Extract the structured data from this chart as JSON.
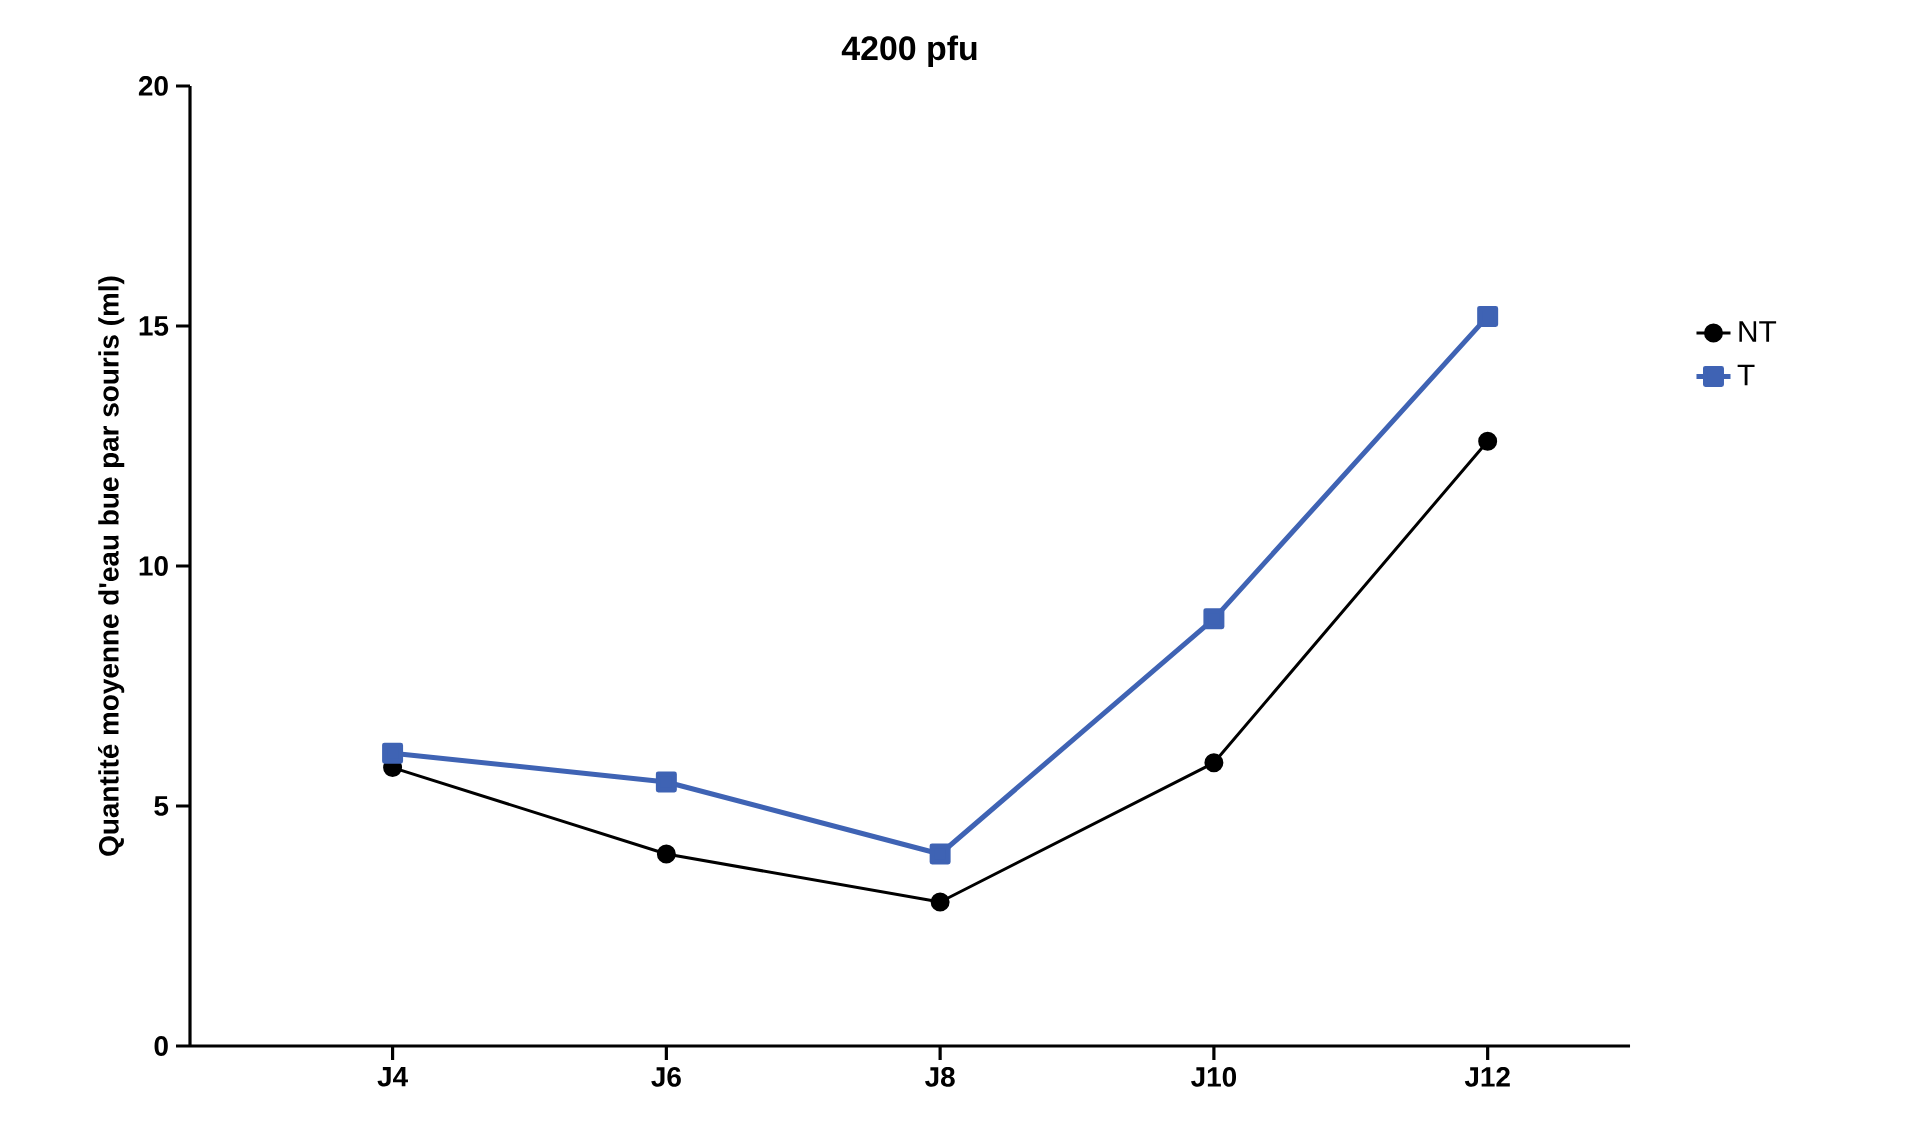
{
  "chart_data": {
    "type": "line",
    "title": "4200 pfu",
    "ylabel": "Quantité moyenne d'eau bue par souris (ml)",
    "categories": [
      "J4",
      "J6",
      "J8",
      "J10",
      "J12"
    ],
    "series": [
      {
        "name": "NT",
        "color": "#000000",
        "marker": "circle",
        "values": [
          5.8,
          4.0,
          3.0,
          5.9,
          12.6
        ]
      },
      {
        "name": "T",
        "color": "#3f63b4",
        "marker": "square",
        "values": [
          6.1,
          5.5,
          4.0,
          8.9,
          15.2
        ]
      }
    ],
    "ylim": [
      0,
      20
    ],
    "yticks": [
      0,
      5,
      10,
      15,
      20
    ],
    "grid": false,
    "legend": "right",
    "line_style": "solid"
  }
}
